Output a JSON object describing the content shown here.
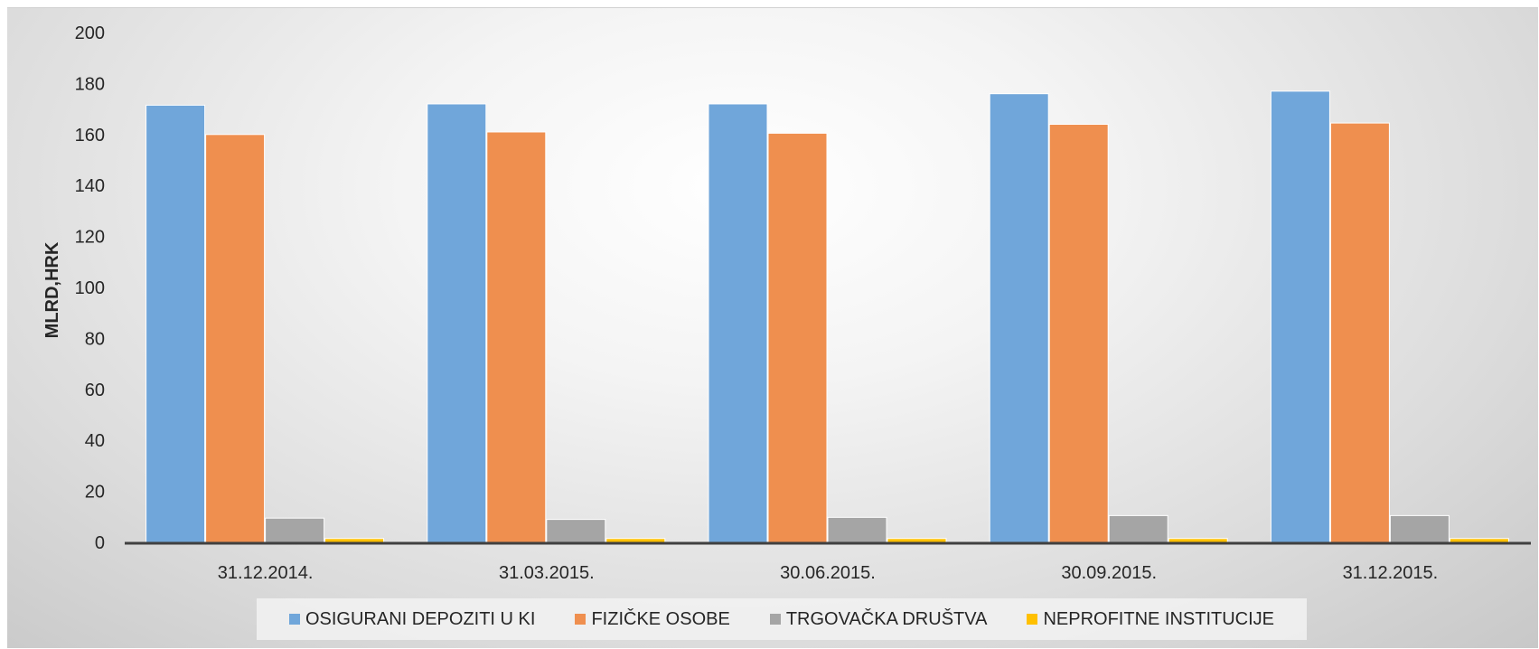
{
  "chart_data": {
    "type": "bar",
    "title": "",
    "xlabel": "",
    "ylabel": "MLRD,HRK",
    "ylim": [
      0,
      200
    ],
    "yticks": [
      0,
      20,
      40,
      60,
      80,
      100,
      120,
      140,
      160,
      180,
      200
    ],
    "grid": false,
    "legend_position": "bottom",
    "categories": [
      "31.12.2014.",
      "31.03.2015.",
      "30.06.2015.",
      "30.09.2015.",
      "31.12.2015."
    ],
    "series": [
      {
        "name": "OSIGURANI DEPOZITI U KI",
        "color": "#70a6da",
        "values": [
          171.5,
          172,
          172,
          176,
          177
        ]
      },
      {
        "name": "FIZIČKE OSOBE",
        "color": "#ef8f4f",
        "values": [
          160,
          161,
          160.5,
          164,
          164.5
        ]
      },
      {
        "name": "TRGOVAČKA DRUŠTVA",
        "color": "#a5a5a5",
        "values": [
          9.5,
          9,
          9.8,
          10.5,
          10.5
        ]
      },
      {
        "name": "NEPROFITNE INSTITUCIJE",
        "color": "#ffc000",
        "values": [
          1.5,
          1.5,
          1.5,
          1.5,
          1.5
        ]
      }
    ]
  }
}
